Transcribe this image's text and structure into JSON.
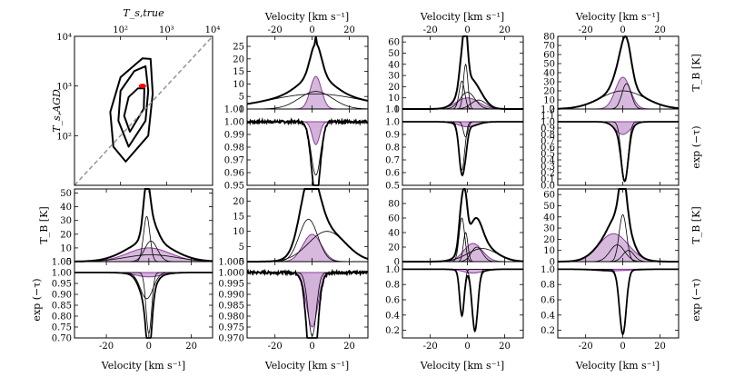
{
  "chart_data": {
    "type": "line",
    "figure": "HI emission/absorption spectral decomposition grid",
    "colors": {
      "total": "#000000",
      "component": "#000000",
      "cnm_fill": "#b57fc1",
      "cnm_line": "#8a3d9a",
      "point": "#ff0000",
      "diagonal": "#999999"
    },
    "scatter_panel": {
      "type": "contour",
      "xlabel": "T_s,true",
      "ylabel": "T_s,AGD",
      "xscale": "log",
      "yscale": "log",
      "xlim": [
        10,
        10000
      ],
      "ylim": [
        10,
        10000
      ],
      "x_ticks": [
        "10²",
        "10³",
        "10⁴"
      ],
      "y_ticks": [
        "10²",
        "10³",
        "10⁴"
      ],
      "highlight_point": {
        "x": 300,
        "y": 1000
      },
      "diagonal": "one-to-one"
    },
    "velocity_axis": {
      "label": "Velocity [km s⁻¹]",
      "range": [
        -35,
        30
      ],
      "ticks": [
        -20,
        0,
        20
      ]
    },
    "emission_ylabel": "T_B [K]",
    "absorption_ylabel": "exp (−τ)",
    "panels": [
      {
        "id": "r1c2",
        "kind": "emission",
        "ylim": [
          0,
          29
        ],
        "yticks": [
          "0",
          "5",
          "10",
          "15",
          "20",
          "25"
        ],
        "components": [
          {
            "center": 2,
            "amp": 13,
            "width": 3,
            "cnm": true
          },
          {
            "center": 2,
            "amp": 7,
            "width": 9,
            "cnm": false
          },
          {
            "center": 2,
            "amp": 6,
            "width": 25,
            "cnm": false
          }
        ],
        "total_override": {
          "center": 2,
          "amp": 29
        }
      },
      {
        "id": "r1c3",
        "kind": "emission",
        "ylim": [
          0,
          65
        ],
        "yticks": [
          "0",
          "10",
          "20",
          "30",
          "40",
          "50",
          "60"
        ],
        "components": [
          {
            "center": -3,
            "amp": 25,
            "width": 1.5,
            "cnm": false
          },
          {
            "center": -1,
            "amp": 40,
            "width": 1.2,
            "cnm": false
          },
          {
            "center": 0,
            "amp": 10,
            "width": 6,
            "cnm": true
          },
          {
            "center": 0,
            "amp": 15,
            "width": 4,
            "cnm": false
          },
          {
            "center": 6,
            "amp": 8,
            "width": 4,
            "cnm": false
          }
        ]
      },
      {
        "id": "r1c4",
        "kind": "emission",
        "ylim": [
          0,
          80
        ],
        "yticks": [
          "0",
          "10",
          "20",
          "30",
          "40",
          "50",
          "60",
          "70",
          "80"
        ],
        "components": [
          {
            "center": 0,
            "amp": 35,
            "width": 4,
            "cnm": true
          },
          {
            "center": 0,
            "amp": 20,
            "width": 12,
            "cnm": false
          },
          {
            "center": 2,
            "amp": 28,
            "width": 2.5,
            "cnm": false
          }
        ]
      },
      {
        "id": "r2c2",
        "kind": "absorption",
        "ylim": [
          0.95,
          1.01
        ],
        "yticks": [
          "0.95",
          "0.96",
          "0.97",
          "0.98",
          "0.99",
          "1.00",
          "1.01"
        ],
        "lines": [
          {
            "center": 2,
            "depth": 0.042,
            "width": 2.5,
            "cnm": false
          },
          {
            "center": 2,
            "depth": 0.018,
            "width": 2.0,
            "cnm": true
          }
        ],
        "noisy": true
      },
      {
        "id": "r2c3",
        "kind": "absorption",
        "ylim": [
          0.5,
          1.1
        ],
        "yticks": [
          "0.5",
          "0.6",
          "0.7",
          "0.8",
          "0.9",
          "1.0",
          "1.1"
        ],
        "lines": [
          {
            "center": -3,
            "depth": 0.38,
            "width": 1.5,
            "cnm": false
          },
          {
            "center": -1,
            "depth": 0.12,
            "width": 1.2,
            "cnm": false
          },
          {
            "center": 0,
            "depth": 0.04,
            "width": 5,
            "cnm": true
          }
        ]
      },
      {
        "id": "r2c4",
        "kind": "absorption",
        "ylim": [
          0.0,
          1.2
        ],
        "yticks": [
          "0.0",
          "0.1",
          "0.2",
          "0.3",
          "0.4",
          "0.5",
          "0.6",
          "0.7",
          "0.8",
          "0.9",
          "1.0",
          "1.1",
          "1.2"
        ],
        "lines": [
          {
            "center": 1,
            "depth": 0.92,
            "width": 1.8,
            "cnm": false
          },
          {
            "center": 0,
            "depth": 0.2,
            "width": 4,
            "cnm": true
          }
        ]
      },
      {
        "id": "r3c1",
        "kind": "emission",
        "ylim": [
          0,
          53
        ],
        "yticks": [
          "0",
          "10",
          "20",
          "30",
          "40",
          "50"
        ],
        "components": [
          {
            "center": -1,
            "amp": 33,
            "width": 1.5,
            "cnm": false
          },
          {
            "center": 0,
            "amp": 10,
            "width": 10,
            "cnm": true
          },
          {
            "center": 1,
            "amp": 15,
            "width": 3,
            "cnm": false
          },
          {
            "center": 1,
            "amp": 5,
            "width": 12,
            "cnm": false
          }
        ]
      },
      {
        "id": "r3c2",
        "kind": "emission",
        "ylim": [
          0,
          24
        ],
        "yticks": [
          "0",
          "5",
          "10",
          "15",
          "20"
        ],
        "components": [
          {
            "center": 0,
            "amp": 9,
            "width": 5,
            "cnm": true
          },
          {
            "center": -2,
            "amp": 14,
            "width": 5,
            "cnm": false
          },
          {
            "center": 8,
            "amp": 10,
            "width": 10,
            "cnm": false
          }
        ]
      },
      {
        "id": "r3c3",
        "kind": "emission",
        "ylim": [
          0,
          100
        ],
        "yticks": [
          "0",
          "20",
          "40",
          "60",
          "80"
        ],
        "components": [
          {
            "center": -3,
            "amp": 60,
            "width": 1.5,
            "cnm": false
          },
          {
            "center": -1,
            "amp": 40,
            "width": 1.2,
            "cnm": false
          },
          {
            "center": 3,
            "amp": 25,
            "width": 5,
            "cnm": true
          },
          {
            "center": 5,
            "amp": 20,
            "width": 3,
            "cnm": false
          },
          {
            "center": 8,
            "amp": 18,
            "width": 8,
            "cnm": false
          }
        ]
      },
      {
        "id": "r3c4",
        "kind": "emission",
        "ylim": [
          0,
          65
        ],
        "yticks": [
          "0",
          "10",
          "20",
          "30",
          "40",
          "50",
          "60"
        ],
        "components": [
          {
            "center": -5,
            "amp": 25,
            "width": 8,
            "cnm": true
          },
          {
            "center": 0,
            "amp": 42,
            "width": 2,
            "cnm": false
          },
          {
            "center": -3,
            "amp": 15,
            "width": 4,
            "cnm": false
          },
          {
            "center": 3,
            "amp": 10,
            "width": 3,
            "cnm": false
          }
        ]
      },
      {
        "id": "r4c1",
        "kind": "absorption",
        "ylim": [
          0.7,
          1.05
        ],
        "yticks": [
          "0.70",
          "0.75",
          "0.80",
          "0.85",
          "0.90",
          "0.95",
          "1.00",
          "1.05"
        ],
        "lines": [
          {
            "center": 0,
            "depth": 0.28,
            "width": 1.3,
            "cnm": false
          },
          {
            "center": -1,
            "depth": 0.12,
            "width": 3,
            "cnm": false
          },
          {
            "center": 0,
            "depth": 0.02,
            "width": 6,
            "cnm": true
          }
        ]
      },
      {
        "id": "r4c2",
        "kind": "absorption",
        "ylim": [
          0.97,
          1.005
        ],
        "yticks": [
          "0.970",
          "0.975",
          "0.980",
          "0.985",
          "0.990",
          "0.995",
          "1.000",
          "1.005"
        ],
        "lines": [
          {
            "center": 0,
            "depth": 0.029,
            "width": 2.2,
            "cnm": false
          },
          {
            "center": 0,
            "depth": 0.025,
            "width": 3,
            "cnm": true
          }
        ],
        "noisy": true
      },
      {
        "id": "r4c3",
        "kind": "absorption",
        "ylim": [
          0.1,
          1.1
        ],
        "yticks": [
          "0.2",
          "0.4",
          "0.6",
          "0.8",
          "1.0"
        ],
        "lines": [
          {
            "center": -3,
            "depth": 0.6,
            "width": 1.2,
            "cnm": false
          },
          {
            "center": 4,
            "depth": 0.8,
            "width": 1.5,
            "cnm": false
          },
          {
            "center": 3,
            "depth": 0.05,
            "width": 5,
            "cnm": true
          }
        ]
      },
      {
        "id": "r4c4",
        "kind": "absorption",
        "ylim": [
          0.1,
          1.1
        ],
        "yticks": [
          "0.2",
          "0.4",
          "0.6",
          "0.8",
          "1.0"
        ],
        "lines": [
          {
            "center": 0,
            "depth": 0.85,
            "width": 1.8,
            "cnm": false
          },
          {
            "center": -5,
            "depth": 0.02,
            "width": 8,
            "cnm": true
          }
        ]
      }
    ]
  }
}
